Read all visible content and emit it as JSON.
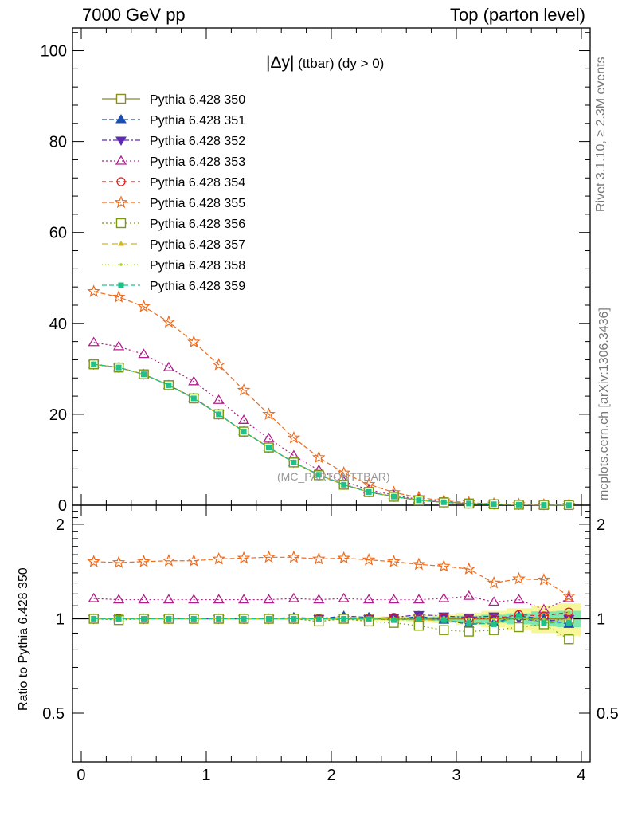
{
  "header": {
    "left": "7000 GeV pp",
    "right": "Top (parton level)"
  },
  "side_labels": {
    "rivet": "Rivet 3.1.10, ≥ 2.3M events",
    "mcplots": "mcplots.cern.ch [arXiv:1306.3436]"
  },
  "annotation": {
    "symbol": "|Δy|",
    "text": "(ttbar) (dy > 0)"
  },
  "watermark": "(MC_PARTONTTBAR)",
  "ratio_ylabel": "Ratio to Pythia 6.428 350",
  "chart_data": [
    {
      "type": "line",
      "panel": "main",
      "xlim": [
        -0.07,
        4.07
      ],
      "ylim": [
        0,
        105
      ],
      "yticks": [
        0,
        20,
        40,
        60,
        80,
        100
      ],
      "ytick_labels": [
        "0",
        "20",
        "40",
        "60",
        "80",
        "100"
      ],
      "x": [
        0.1,
        0.3,
        0.5,
        0.7,
        0.9,
        1.1,
        1.3,
        1.5,
        1.7,
        1.9,
        2.1,
        2.3,
        2.5,
        2.7,
        2.9,
        3.1,
        3.3,
        3.5,
        3.7,
        3.9
      ],
      "legend_position": "top-left",
      "series": [
        {
          "name": "Pythia 6.428 350",
          "color": "#8b8b22",
          "marker": "square-open",
          "dash": "",
          "values": [
            31.0,
            30.3,
            28.8,
            26.4,
            23.5,
            20.0,
            16.2,
            12.7,
            9.4,
            6.7,
            4.5,
            2.9,
            1.9,
            1.1,
            0.65,
            0.38,
            0.22,
            0.12,
            0.07,
            0.04
          ]
        },
        {
          "name": "Pythia 6.428 351",
          "color": "#1a4fb0",
          "marker": "triangle-up-filled",
          "dash": "6,3",
          "values": [
            31.0,
            30.3,
            28.8,
            26.4,
            23.6,
            20.0,
            16.2,
            12.7,
            9.4,
            6.7,
            4.5,
            2.9,
            1.9,
            1.1,
            0.64,
            0.36,
            0.21,
            0.12,
            0.07,
            0.04
          ]
        },
        {
          "name": "Pythia 6.428 352",
          "color": "#5d2bb0",
          "marker": "triangle-down-filled",
          "dash": "6,3,2,3",
          "values": [
            31.0,
            30.3,
            28.8,
            26.4,
            23.5,
            20.0,
            16.2,
            12.7,
            9.4,
            6.7,
            4.6,
            2.9,
            1.9,
            1.1,
            0.66,
            0.38,
            0.22,
            0.12,
            0.07,
            0.04
          ]
        },
        {
          "name": "Pythia 6.428 353",
          "color": "#b0208a",
          "marker": "triangle-up-open",
          "dash": "2,3",
          "values": [
            35.8,
            34.9,
            33.2,
            30.3,
            27.2,
            23.1,
            18.7,
            14.7,
            10.9,
            7.7,
            5.2,
            3.4,
            2.2,
            1.3,
            0.76,
            0.45,
            0.25,
            0.14,
            0.08,
            0.05
          ]
        },
        {
          "name": "Pythia 6.428 354",
          "color": "#e0201e",
          "marker": "circle-open",
          "dash": "5,4",
          "values": [
            31.0,
            30.3,
            28.8,
            26.4,
            23.6,
            20.0,
            16.2,
            12.7,
            9.4,
            6.7,
            4.5,
            2.9,
            1.9,
            1.1,
            0.65,
            0.38,
            0.21,
            0.12,
            0.07,
            0.04
          ]
        },
        {
          "name": "Pythia 6.428 355",
          "color": "#f06a1a",
          "marker": "star-open",
          "dash": "6,3",
          "values": [
            47.0,
            45.8,
            43.7,
            40.3,
            35.9,
            30.9,
            25.3,
            20.0,
            14.8,
            10.5,
            7.1,
            4.6,
            2.8,
            1.7,
            0.98,
            0.57,
            0.29,
            0.17,
            0.095,
            0.048
          ]
        },
        {
          "name": "Pythia 6.428 356",
          "color": "#7a9a10",
          "marker": "square-open",
          "dash": "2,3",
          "values": [
            31.0,
            30.3,
            28.8,
            26.4,
            23.5,
            20.0,
            16.2,
            12.7,
            9.4,
            6.6,
            4.5,
            2.9,
            1.85,
            1.05,
            0.61,
            0.35,
            0.2,
            0.11,
            0.065,
            0.034
          ]
        },
        {
          "name": "Pythia 6.428 357",
          "color": "#d4b81a",
          "marker": "triangle-small",
          "dash": "8,4",
          "values": [
            31.0,
            30.3,
            28.8,
            26.4,
            23.5,
            20.0,
            16.2,
            12.7,
            9.4,
            6.7,
            4.5,
            2.9,
            1.9,
            1.1,
            0.65,
            0.37,
            0.21,
            0.12,
            0.068,
            0.04
          ]
        },
        {
          "name": "Pythia 6.428 358",
          "color": "#a6d81a",
          "marker": "dot",
          "dash": "1,3",
          "values": [
            31.0,
            30.3,
            28.8,
            26.4,
            23.5,
            20.0,
            16.2,
            12.7,
            9.4,
            6.7,
            4.5,
            2.9,
            1.9,
            1.1,
            0.66,
            0.38,
            0.22,
            0.12,
            0.07,
            0.042
          ]
        },
        {
          "name": "Pythia 6.428 359",
          "color": "#20c08a",
          "marker": "square-small-filled",
          "dash": "6,3",
          "values": [
            31.0,
            30.3,
            28.8,
            26.4,
            23.5,
            20.0,
            16.2,
            12.7,
            9.4,
            6.7,
            4.5,
            2.9,
            1.9,
            1.1,
            0.65,
            0.37,
            0.21,
            0.12,
            0.068,
            0.039
          ]
        }
      ]
    },
    {
      "type": "line",
      "panel": "ratio",
      "xlim": [
        -0.07,
        4.07
      ],
      "ylim": [
        0.35,
        2.3
      ],
      "xticks": [
        0,
        1,
        2,
        3,
        4
      ],
      "xtick_labels": [
        "0",
        "1",
        "2",
        "3",
        "4"
      ],
      "yticks": [
        0.5,
        1,
        2
      ],
      "ytick_labels": [
        "0.5",
        "1",
        "2"
      ],
      "ylabel": "Ratio to Pythia 6.428 350",
      "x": [
        0.1,
        0.3,
        0.5,
        0.7,
        0.9,
        1.1,
        1.3,
        1.5,
        1.7,
        1.9,
        2.1,
        2.3,
        2.5,
        2.7,
        2.9,
        3.1,
        3.3,
        3.5,
        3.7,
        3.9
      ],
      "uncertainty_band": {
        "inner_color": "#7fe8b0",
        "outer_color": "#f7f79a",
        "inner_halfwidth": [
          0.003,
          0.003,
          0.003,
          0.003,
          0.003,
          0.003,
          0.004,
          0.004,
          0.004,
          0.005,
          0.006,
          0.007,
          0.009,
          0.012,
          0.016,
          0.022,
          0.03,
          0.04,
          0.055,
          0.06
        ],
        "outer_halfwidth": [
          0.005,
          0.005,
          0.005,
          0.005,
          0.005,
          0.006,
          0.006,
          0.007,
          0.008,
          0.009,
          0.011,
          0.014,
          0.018,
          0.024,
          0.032,
          0.045,
          0.06,
          0.08,
          0.1,
          0.12
        ]
      },
      "series": [
        {
          "name": "Pythia 6.428 350",
          "color": "#8b8b22",
          "marker": "square-open",
          "dash": "",
          "values": [
            1,
            1,
            1,
            1,
            1,
            1,
            1,
            1,
            1,
            1,
            1,
            1,
            1,
            1,
            1,
            1,
            1,
            1,
            1,
            1
          ]
        },
        {
          "name": "Pythia 6.428 351",
          "color": "#1a4fb0",
          "marker": "triangle-up-filled",
          "dash": "6,3",
          "values": [
            1.0,
            1.0,
            1.0,
            1.0,
            1.0,
            1.0,
            1.0,
            1.0,
            1.01,
            1.0,
            1.02,
            1.01,
            0.99,
            1.02,
            0.99,
            0.96,
            0.97,
            1.02,
            1.0,
            0.96
          ]
        },
        {
          "name": "Pythia 6.428 352",
          "color": "#5d2bb0",
          "marker": "triangle-down-filled",
          "dash": "6,3,2,3",
          "values": [
            1.0,
            1.0,
            1.0,
            1.0,
            1.0,
            1.0,
            1.0,
            1.0,
            1.0,
            1.0,
            1.01,
            1.0,
            1.01,
            1.03,
            1.02,
            1.01,
            1.02,
            1.0,
            0.98,
            1.0
          ]
        },
        {
          "name": "Pythia 6.428 353",
          "color": "#b0208a",
          "marker": "triangle-up-open",
          "dash": "2,3",
          "values": [
            1.16,
            1.15,
            1.15,
            1.15,
            1.15,
            1.15,
            1.15,
            1.15,
            1.16,
            1.15,
            1.16,
            1.15,
            1.15,
            1.15,
            1.16,
            1.18,
            1.13,
            1.15,
            1.07,
            1.16
          ]
        },
        {
          "name": "Pythia 6.428 354",
          "color": "#e0201e",
          "marker": "circle-open",
          "dash": "5,4",
          "values": [
            1.0,
            1.0,
            1.0,
            1.0,
            1.0,
            1.0,
            1.0,
            1.0,
            1.0,
            1.0,
            1.0,
            1.0,
            1.01,
            1.0,
            1.01,
            1.0,
            1.0,
            1.03,
            1.02,
            1.05
          ]
        },
        {
          "name": "Pythia 6.428 355",
          "color": "#f06a1a",
          "marker": "star-open",
          "dash": "6,3",
          "values": [
            1.52,
            1.51,
            1.52,
            1.53,
            1.53,
            1.55,
            1.56,
            1.57,
            1.57,
            1.55,
            1.56,
            1.54,
            1.52,
            1.49,
            1.47,
            1.44,
            1.3,
            1.34,
            1.33,
            1.18
          ]
        },
        {
          "name": "Pythia 6.428 356",
          "color": "#7a9a10",
          "marker": "square-open",
          "dash": "2,3",
          "values": [
            1.0,
            0.99,
            1.0,
            1.0,
            1.0,
            1.0,
            1.0,
            1.0,
            1.0,
            0.98,
            1.0,
            0.98,
            0.97,
            0.95,
            0.92,
            0.91,
            0.92,
            0.94,
            0.96,
            0.86
          ]
        },
        {
          "name": "Pythia 6.428 357",
          "color": "#d4b81a",
          "marker": "triangle-small",
          "dash": "8,4",
          "values": [
            1.0,
            1.0,
            1.0,
            1.0,
            1.0,
            1.0,
            1.0,
            1.0,
            1.0,
            1.0,
            1.0,
            1.0,
            1.0,
            0.99,
            0.99,
            0.97,
            0.97,
            1.01,
            0.97,
            1.0
          ]
        },
        {
          "name": "Pythia 6.428 358",
          "color": "#a6d81a",
          "marker": "dot",
          "dash": "1,3",
          "values": [
            1.0,
            1.0,
            1.0,
            1.0,
            1.0,
            1.0,
            1.0,
            1.0,
            1.0,
            1.0,
            1.0,
            1.0,
            1.0,
            1.0,
            1.01,
            1.0,
            1.0,
            1.0,
            1.0,
            1.05
          ]
        },
        {
          "name": "Pythia 6.428 359",
          "color": "#20c08a",
          "marker": "square-small-filled",
          "dash": "6,3",
          "values": [
            1.0,
            1.0,
            1.0,
            1.0,
            1.0,
            1.0,
            1.0,
            1.0,
            1.0,
            1.0,
            1.0,
            1.0,
            0.99,
            1.0,
            0.99,
            0.97,
            0.96,
            1.02,
            0.97,
            0.97
          ]
        }
      ]
    }
  ]
}
